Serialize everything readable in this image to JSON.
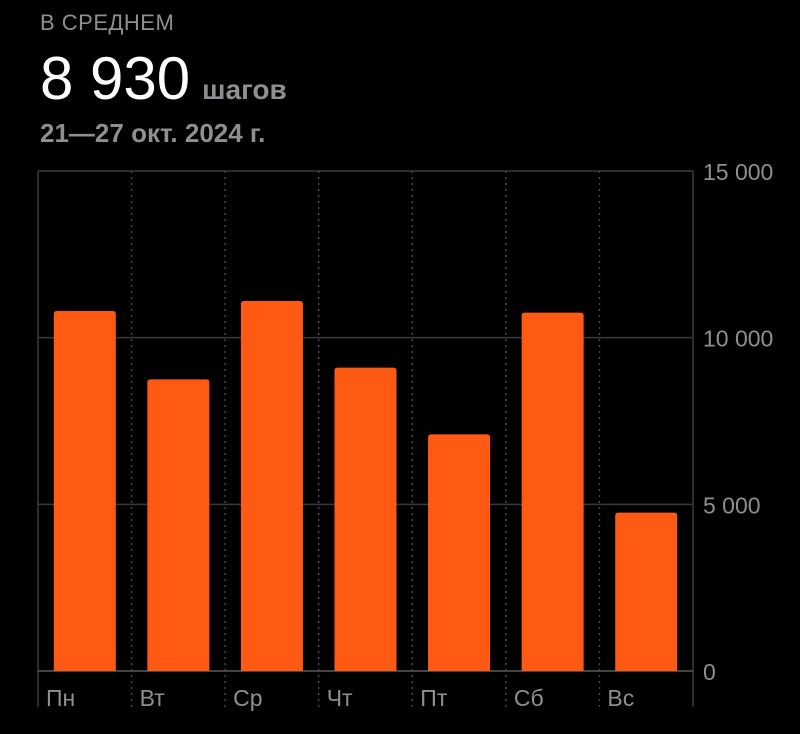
{
  "summary": {
    "caption": "В СРЕДНЕМ",
    "value": "8 930",
    "unit": "шагов",
    "date_range": "21—27 окт. 2024 г."
  },
  "colors": {
    "background": "#000000",
    "bar": "#ff5a14",
    "grid_solid": "#3a3a3c",
    "grid_dotted": "#48484a",
    "secondary_text": "#8e8e93"
  },
  "chart_data": {
    "type": "bar",
    "categories": [
      "Пн",
      "Вт",
      "Ср",
      "Чт",
      "Пт",
      "Сб",
      "Вс"
    ],
    "values": [
      10800,
      8750,
      11100,
      9100,
      7100,
      10750,
      4750
    ],
    "y_ticks": [
      {
        "value": 0,
        "label": "0"
      },
      {
        "value": 5000,
        "label": "5 000"
      },
      {
        "value": 10000,
        "label": "10 000"
      },
      {
        "value": 15000,
        "label": "15 000"
      }
    ],
    "ylim": [
      0,
      15000
    ],
    "y_axis_position": "right",
    "grid": true
  }
}
